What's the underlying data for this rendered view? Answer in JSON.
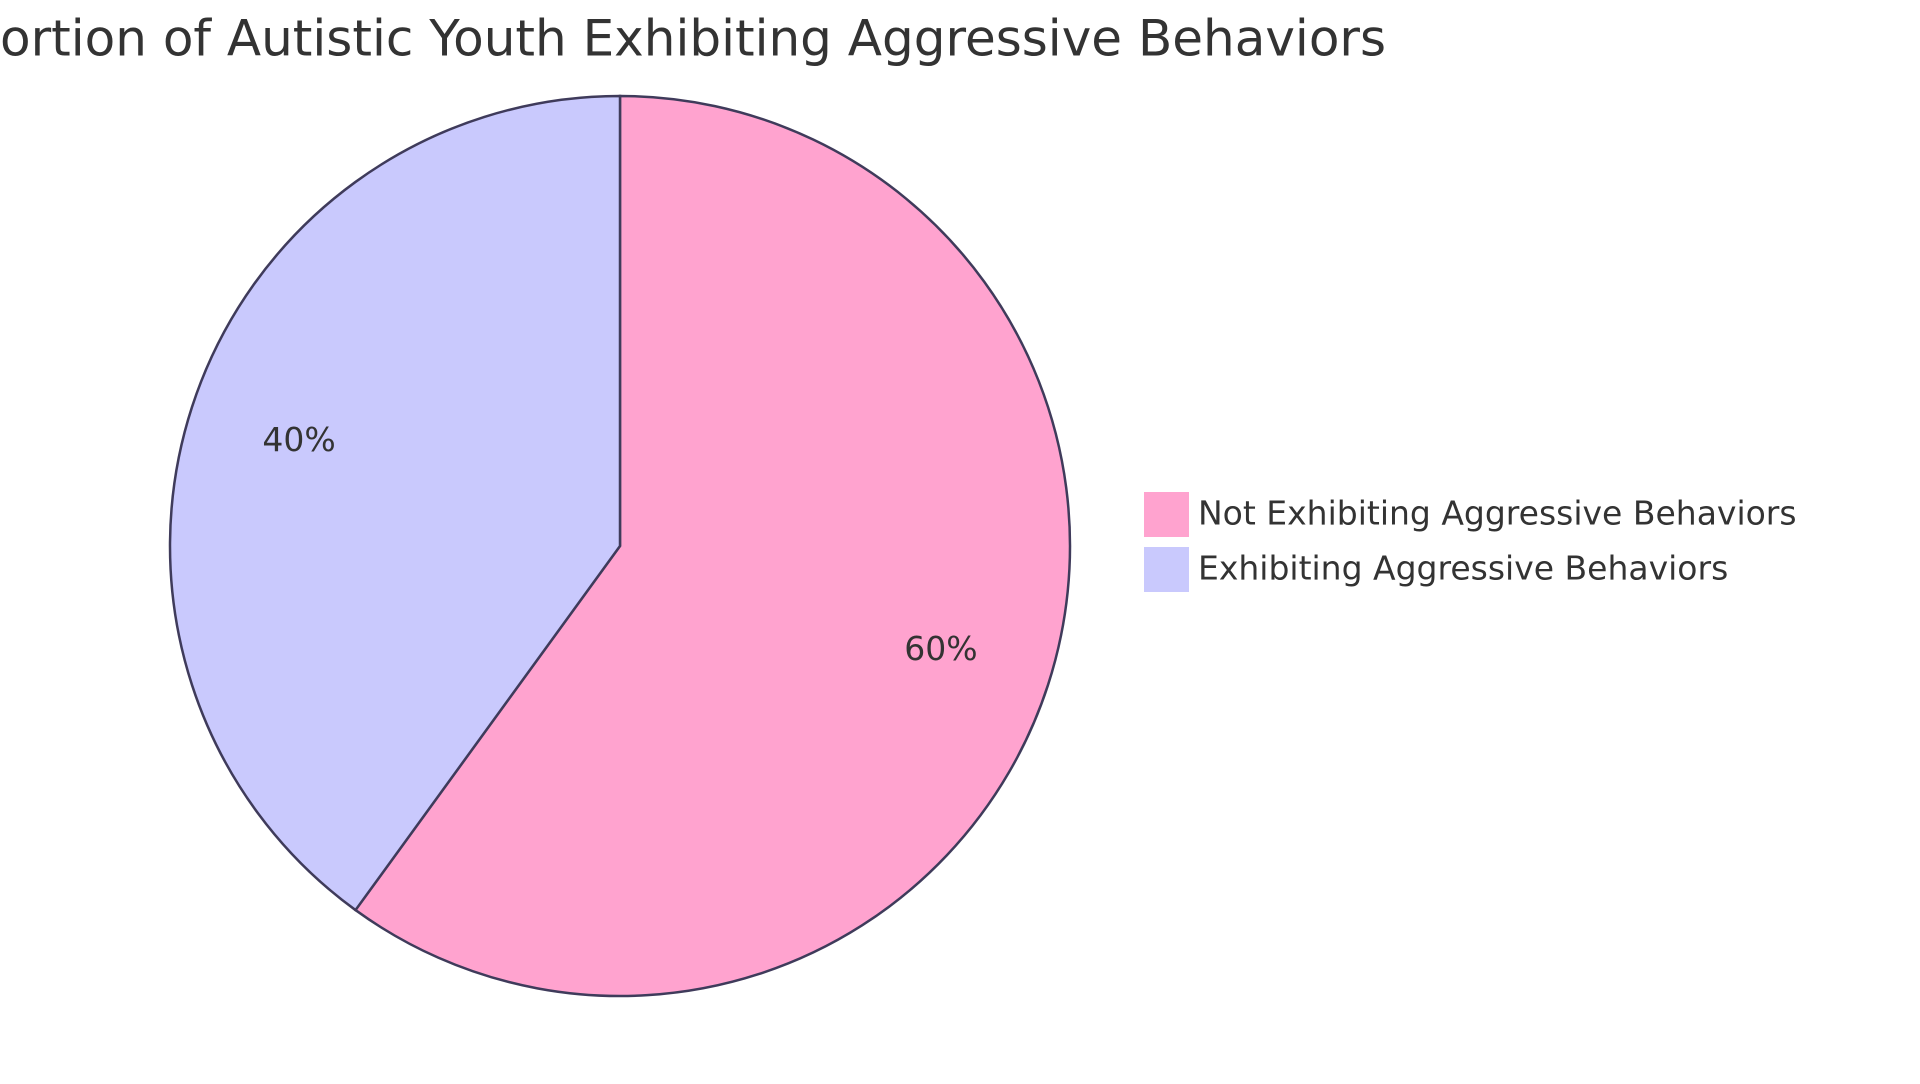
{
  "chart_data": {
    "type": "pie",
    "title": "ortion of Autistic Youth Exhibiting Aggressive Behaviors",
    "categories": [
      "Not Exhibiting Aggressive Behaviors",
      "Exhibiting Aggressive Behaviors"
    ],
    "values": [
      60,
      40
    ],
    "value_labels": [
      "60%",
      "40%"
    ],
    "colors": [
      "#ffa3cf",
      "#c9c9fd"
    ]
  }
}
